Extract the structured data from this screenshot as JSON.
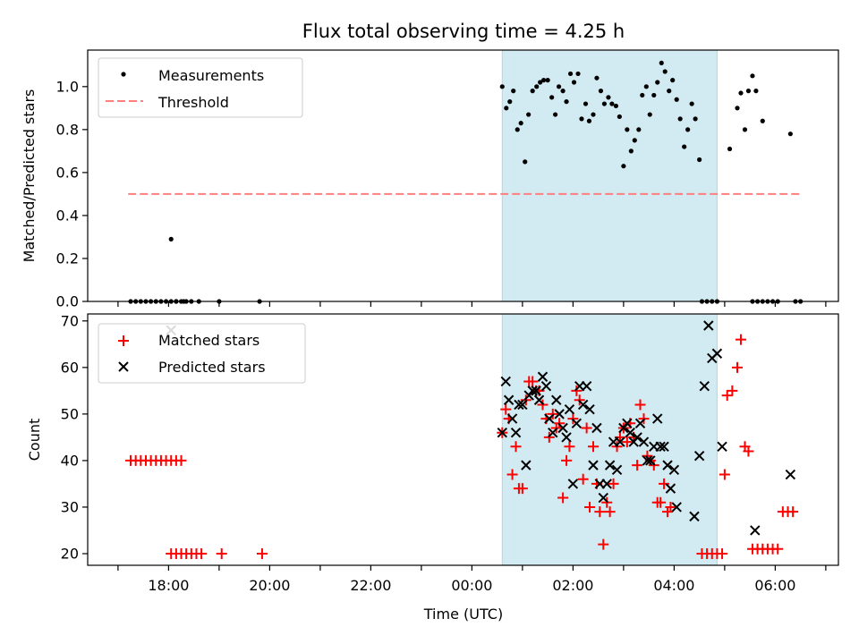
{
  "figure": {
    "title": "Flux total observing time = 4.25 h",
    "xlabel": "Time (UTC)"
  },
  "colors": {
    "measurement": "#000000",
    "threshold": "#ff7f7f",
    "matched": "#ff0000",
    "predicted": "#000000",
    "shade": "#add8e6"
  },
  "chart_data": [
    {
      "type": "scatter",
      "panel": "top",
      "ylabel": "Matched/Predicted stars",
      "x_unit": "hours since 00:00 UTC",
      "xlim": [
        -7.6,
        7.25
      ],
      "ylim": [
        0,
        1.17
      ],
      "yticks": [
        0.0,
        0.2,
        0.4,
        0.6,
        0.8,
        1.0
      ],
      "ytick_labels": [
        "0.0",
        "0.2",
        "0.4",
        "0.6",
        "0.8",
        "1.0"
      ],
      "shaded_interval": [
        0.6,
        4.85
      ],
      "legend": {
        "position": "upper-left",
        "entries": [
          "Measurements",
          "Threshold"
        ]
      },
      "threshold": {
        "name": "Threshold",
        "value": 0.5,
        "x_range": [
          -6.8,
          6.5
        ]
      },
      "series": [
        {
          "name": "Measurements",
          "points": [
            [
              -6.75,
              0
            ],
            [
              -6.65,
              0
            ],
            [
              -6.55,
              0
            ],
            [
              -6.45,
              0
            ],
            [
              -6.35,
              0
            ],
            [
              -6.25,
              0
            ],
            [
              -6.15,
              0
            ],
            [
              -6.05,
              0
            ],
            [
              -5.95,
              0
            ],
            [
              -5.85,
              0
            ],
            [
              -5.75,
              0
            ],
            [
              -5.65,
              0
            ],
            [
              -5.95,
              0.29
            ],
            [
              -5.85,
              0
            ],
            [
              -5.7,
              0
            ],
            [
              -5.55,
              0
            ],
            [
              -5.4,
              0
            ],
            [
              -5.0,
              0
            ],
            [
              -4.2,
              0
            ],
            [
              0.6,
              1.0
            ],
            [
              0.68,
              0.9
            ],
            [
              0.75,
              0.93
            ],
            [
              0.82,
              0.98
            ],
            [
              0.9,
              0.8
            ],
            [
              0.97,
              0.83
            ],
            [
              1.05,
              0.65
            ],
            [
              1.12,
              0.87
            ],
            [
              1.2,
              0.98
            ],
            [
              1.28,
              1.0
            ],
            [
              1.35,
              1.02
            ],
            [
              1.42,
              1.03
            ],
            [
              1.5,
              1.03
            ],
            [
              1.58,
              0.95
            ],
            [
              1.65,
              0.87
            ],
            [
              1.72,
              1.0
            ],
            [
              1.8,
              0.98
            ],
            [
              1.87,
              0.93
            ],
            [
              1.95,
              1.06
            ],
            [
              2.02,
              1.02
            ],
            [
              2.1,
              1.06
            ],
            [
              2.17,
              0.85
            ],
            [
              2.25,
              0.92
            ],
            [
              2.32,
              0.84
            ],
            [
              2.4,
              0.87
            ],
            [
              2.47,
              1.04
            ],
            [
              2.55,
              0.98
            ],
            [
              2.62,
              0.92
            ],
            [
              2.7,
              0.95
            ],
            [
              2.77,
              0.92
            ],
            [
              2.85,
              0.91
            ],
            [
              2.92,
              0.86
            ],
            [
              3.0,
              0.63
            ],
            [
              3.07,
              0.8
            ],
            [
              3.15,
              0.7
            ],
            [
              3.22,
              0.75
            ],
            [
              3.3,
              0.8
            ],
            [
              3.37,
              0.96
            ],
            [
              3.45,
              1.0
            ],
            [
              3.52,
              0.87
            ],
            [
              3.6,
              0.96
            ],
            [
              3.67,
              1.02
            ],
            [
              3.75,
              1.11
            ],
            [
              3.82,
              1.07
            ],
            [
              3.9,
              0.98
            ],
            [
              3.97,
              1.03
            ],
            [
              4.05,
              0.94
            ],
            [
              4.12,
              0.85
            ],
            [
              4.2,
              0.72
            ],
            [
              4.27,
              0.8
            ],
            [
              4.35,
              0.92
            ],
            [
              4.42,
              0.85
            ],
            [
              4.5,
              0.66
            ],
            [
              4.55,
              0
            ],
            [
              4.65,
              0
            ],
            [
              4.75,
              0
            ],
            [
              4.85,
              0
            ],
            [
              5.1,
              0.71
            ],
            [
              5.25,
              0.9
            ],
            [
              5.32,
              0.97
            ],
            [
              5.4,
              0.8
            ],
            [
              5.47,
              0.98
            ],
            [
              5.55,
              1.05
            ],
            [
              5.62,
              0.98
            ],
            [
              5.75,
              0.84
            ],
            [
              5.55,
              0
            ],
            [
              5.65,
              0
            ],
            [
              5.75,
              0
            ],
            [
              5.85,
              0
            ],
            [
              5.95,
              0
            ],
            [
              6.05,
              0
            ],
            [
              6.3,
              0.78
            ],
            [
              6.4,
              0
            ],
            [
              6.5,
              0
            ]
          ]
        }
      ]
    },
    {
      "type": "scatter",
      "panel": "bottom",
      "ylabel": "Count",
      "x_unit": "hours since 00:00 UTC",
      "xlim": [
        -7.6,
        7.25
      ],
      "ylim": [
        17.5,
        71.5
      ],
      "yticks": [
        20,
        30,
        40,
        50,
        60,
        70
      ],
      "ytick_labels": [
        "20",
        "30",
        "40",
        "50",
        "60",
        "70"
      ],
      "xticks": [
        -6,
        -4,
        -2,
        0,
        2,
        4,
        6
      ],
      "xtick_labels": [
        "18:00",
        "20:00",
        "22:00",
        "00:00",
        "02:00",
        "04:00",
        "06:00"
      ],
      "shaded_interval": [
        0.6,
        4.85
      ],
      "legend": {
        "position": "upper-left",
        "entries": [
          "Matched stars",
          "Predicted stars"
        ]
      },
      "series": [
        {
          "name": "Matched stars",
          "marker": "plus",
          "points": [
            [
              -6.75,
              40
            ],
            [
              -6.65,
              40
            ],
            [
              -6.55,
              40
            ],
            [
              -6.45,
              40
            ],
            [
              -6.35,
              40
            ],
            [
              -6.25,
              40
            ],
            [
              -6.15,
              40
            ],
            [
              -6.05,
              40
            ],
            [
              -5.95,
              40
            ],
            [
              -5.85,
              40
            ],
            [
              -5.75,
              40
            ],
            [
              -5.95,
              20
            ],
            [
              -5.85,
              20
            ],
            [
              -5.75,
              20
            ],
            [
              -5.65,
              20
            ],
            [
              -5.55,
              20
            ],
            [
              -5.45,
              20
            ],
            [
              -5.35,
              20
            ],
            [
              -4.95,
              20
            ],
            [
              -4.15,
              20
            ],
            [
              0.6,
              46
            ],
            [
              0.67,
              51
            ],
            [
              0.73,
              49
            ],
            [
              0.8,
              37
            ],
            [
              0.87,
              43
            ],
            [
              0.93,
              34
            ],
            [
              1.0,
              34
            ],
            [
              1.07,
              53
            ],
            [
              1.13,
              57
            ],
            [
              1.2,
              57
            ],
            [
              1.27,
              55
            ],
            [
              1.33,
              55
            ],
            [
              1.4,
              52
            ],
            [
              1.47,
              49
            ],
            [
              1.53,
              45
            ],
            [
              1.6,
              50
            ],
            [
              1.67,
              47
            ],
            [
              1.73,
              48
            ],
            [
              1.8,
              32
            ],
            [
              1.87,
              40
            ],
            [
              1.93,
              43
            ],
            [
              2.0,
              49
            ],
            [
              2.07,
              55
            ],
            [
              2.13,
              53
            ],
            [
              2.2,
              36
            ],
            [
              2.27,
              47
            ],
            [
              2.33,
              30
            ],
            [
              2.4,
              43
            ],
            [
              2.47,
              35
            ],
            [
              2.53,
              29
            ],
            [
              2.6,
              22
            ],
            [
              2.67,
              31
            ],
            [
              2.73,
              29
            ],
            [
              2.8,
              35
            ],
            [
              2.87,
              43
            ],
            [
              2.93,
              45
            ],
            [
              3.0,
              47
            ],
            [
              3.07,
              44
            ],
            [
              3.13,
              48
            ],
            [
              3.2,
              45
            ],
            [
              3.27,
              39
            ],
            [
              3.33,
              52
            ],
            [
              3.4,
              49
            ],
            [
              3.47,
              41
            ],
            [
              3.53,
              40
            ],
            [
              3.6,
              39
            ],
            [
              3.67,
              31
            ],
            [
              3.73,
              31
            ],
            [
              3.8,
              35
            ],
            [
              3.87,
              29
            ],
            [
              3.93,
              30
            ],
            [
              4.55,
              20
            ],
            [
              4.65,
              20
            ],
            [
              4.75,
              20
            ],
            [
              4.85,
              20
            ],
            [
              4.95,
              20
            ],
            [
              5.0,
              37
            ],
            [
              5.05,
              54
            ],
            [
              5.15,
              55
            ],
            [
              5.25,
              60
            ],
            [
              5.32,
              66
            ],
            [
              5.4,
              43
            ],
            [
              5.47,
              42
            ],
            [
              5.55,
              21
            ],
            [
              5.65,
              21
            ],
            [
              5.75,
              21
            ],
            [
              5.85,
              21
            ],
            [
              5.95,
              21
            ],
            [
              6.05,
              21
            ],
            [
              6.15,
              29
            ],
            [
              6.25,
              29
            ],
            [
              6.35,
              29
            ]
          ]
        },
        {
          "name": "Predicted stars",
          "marker": "x",
          "points": [
            [
              -5.95,
              68
            ],
            [
              0.6,
              46
            ],
            [
              0.67,
              57
            ],
            [
              0.73,
              53
            ],
            [
              0.8,
              49
            ],
            [
              0.87,
              46
            ],
            [
              0.93,
              52
            ],
            [
              1.0,
              52
            ],
            [
              1.07,
              39
            ],
            [
              1.13,
              54
            ],
            [
              1.2,
              55
            ],
            [
              1.27,
              55
            ],
            [
              1.33,
              53
            ],
            [
              1.4,
              58
            ],
            [
              1.47,
              56
            ],
            [
              1.53,
              49
            ],
            [
              1.6,
              46
            ],
            [
              1.67,
              53
            ],
            [
              1.73,
              50
            ],
            [
              1.8,
              47
            ],
            [
              1.87,
              45
            ],
            [
              1.93,
              51
            ],
            [
              2.0,
              35
            ],
            [
              2.07,
              48
            ],
            [
              2.13,
              56
            ],
            [
              2.2,
              52
            ],
            [
              2.27,
              56
            ],
            [
              2.33,
              51
            ],
            [
              2.4,
              39
            ],
            [
              2.47,
              47
            ],
            [
              2.53,
              35
            ],
            [
              2.6,
              32
            ],
            [
              2.67,
              35
            ],
            [
              2.73,
              39
            ],
            [
              2.8,
              44
            ],
            [
              2.87,
              38
            ],
            [
              2.93,
              44
            ],
            [
              3.0,
              47
            ],
            [
              3.07,
              48
            ],
            [
              3.13,
              46
            ],
            [
              3.2,
              44
            ],
            [
              3.27,
              45
            ],
            [
              3.33,
              48
            ],
            [
              3.4,
              44
            ],
            [
              3.47,
              40
            ],
            [
              3.53,
              40
            ],
            [
              3.6,
              43
            ],
            [
              3.67,
              49
            ],
            [
              3.73,
              43
            ],
            [
              3.8,
              43
            ],
            [
              3.87,
              39
            ],
            [
              3.93,
              34
            ],
            [
              4.0,
              38
            ],
            [
              4.05,
              30
            ],
            [
              4.4,
              28
            ],
            [
              4.5,
              41
            ],
            [
              4.6,
              56
            ],
            [
              4.68,
              69
            ],
            [
              4.75,
              62
            ],
            [
              4.85,
              63
            ],
            [
              4.95,
              43
            ],
            [
              5.6,
              25
            ],
            [
              6.3,
              37
            ]
          ]
        }
      ]
    }
  ]
}
